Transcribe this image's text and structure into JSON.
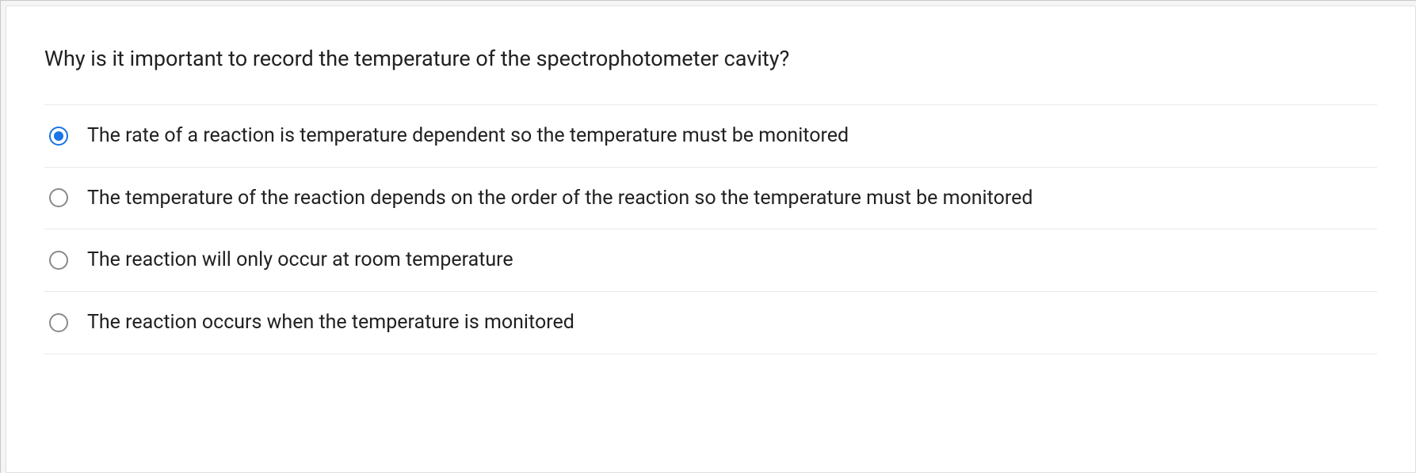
{
  "question": {
    "prompt": "Why is it important to record the temperature of the spectrophotometer cavity?",
    "options": [
      {
        "label": "The rate of a reaction is temperature dependent so the temperature must be monitored",
        "selected": true
      },
      {
        "label": "The temperature of the reaction depends on the order of the reaction so the temperature must be monitored",
        "selected": false
      },
      {
        "label": "The reaction will only occur at room temperature",
        "selected": false
      },
      {
        "label": "The reaction occurs when the temperature is monitored",
        "selected": false
      }
    ]
  },
  "colors": {
    "radio_selected": "#1a73e8",
    "radio_unselected_border": "#8a8a8a",
    "text": "#212121",
    "divider": "#e8e8e8",
    "card_border": "#e0e0e0",
    "page_bg": "#f5f5f5"
  }
}
